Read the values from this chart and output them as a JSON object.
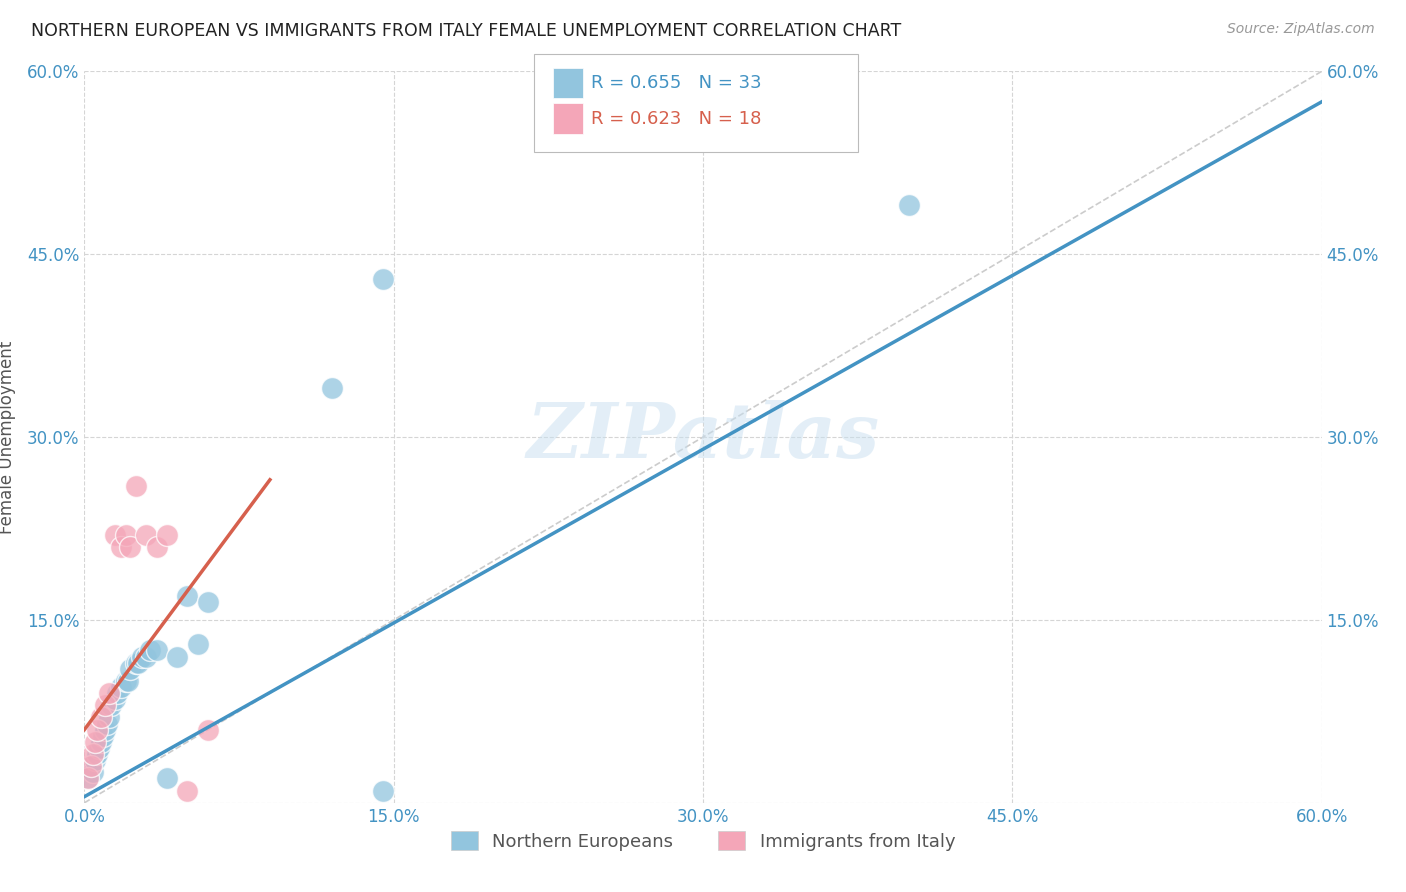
{
  "title": "NORTHERN EUROPEAN VS IMMIGRANTS FROM ITALY FEMALE UNEMPLOYMENT CORRELATION CHART",
  "source": "Source: ZipAtlas.com",
  "ylabel": "Female Unemployment",
  "xlim": [
    0.0,
    0.6
  ],
  "ylim": [
    0.0,
    0.6
  ],
  "xticks": [
    0.0,
    0.15,
    0.3,
    0.45,
    0.6
  ],
  "yticks": [
    0.0,
    0.15,
    0.3,
    0.45,
    0.6
  ],
  "xticklabels": [
    "0.0%",
    "15.0%",
    "30.0%",
    "45.0%",
    "60.0%"
  ],
  "yticklabels_left": [
    "",
    "15.0%",
    "30.0%",
    "45.0%",
    "60.0%"
  ],
  "yticklabels_right": [
    "",
    "15.0%",
    "30.0%",
    "45.0%",
    "60.0%"
  ],
  "watermark": "ZIPatlas",
  "legend_r1": "R = 0.655",
  "legend_n1": "N = 33",
  "legend_r2": "R = 0.623",
  "legend_n2": "N = 18",
  "blue_color": "#92c5de",
  "pink_color": "#f4a6b8",
  "blue_line_color": "#4393c3",
  "pink_line_color": "#d6604d",
  "diag_color": "#cccccc",
  "tick_color": "#4393c3",
  "label1": "Northern Europeans",
  "label2": "Immigrants from Italy",
  "blue_x": [
    0.002,
    0.003,
    0.004,
    0.005,
    0.006,
    0.007,
    0.008,
    0.009,
    0.01,
    0.011,
    0.012,
    0.013,
    0.015,
    0.016,
    0.018,
    0.02,
    0.021,
    0.022,
    0.025,
    0.026,
    0.028,
    0.03,
    0.032,
    0.035,
    0.04,
    0.045,
    0.05,
    0.055,
    0.06,
    0.12,
    0.145,
    0.145,
    0.4
  ],
  "blue_y": [
    0.02,
    0.03,
    0.025,
    0.035,
    0.04,
    0.045,
    0.05,
    0.055,
    0.06,
    0.065,
    0.07,
    0.08,
    0.085,
    0.09,
    0.095,
    0.1,
    0.1,
    0.11,
    0.115,
    0.115,
    0.12,
    0.12,
    0.125,
    0.125,
    0.02,
    0.12,
    0.17,
    0.13,
    0.165,
    0.34,
    0.43,
    0.01,
    0.49
  ],
  "pink_x": [
    0.002,
    0.003,
    0.004,
    0.005,
    0.006,
    0.008,
    0.01,
    0.012,
    0.015,
    0.018,
    0.02,
    0.022,
    0.025,
    0.03,
    0.035,
    0.04,
    0.05,
    0.06
  ],
  "pink_y": [
    0.02,
    0.03,
    0.04,
    0.05,
    0.06,
    0.07,
    0.08,
    0.09,
    0.22,
    0.21,
    0.22,
    0.21,
    0.26,
    0.22,
    0.21,
    0.22,
    0.01,
    0.06
  ],
  "blue_line_x0": 0.0,
  "blue_line_x1": 0.6,
  "blue_line_y0": 0.005,
  "blue_line_y1": 0.575,
  "pink_line_x0": 0.0,
  "pink_line_x1": 0.09,
  "pink_line_y0": 0.06,
  "pink_line_y1": 0.265
}
